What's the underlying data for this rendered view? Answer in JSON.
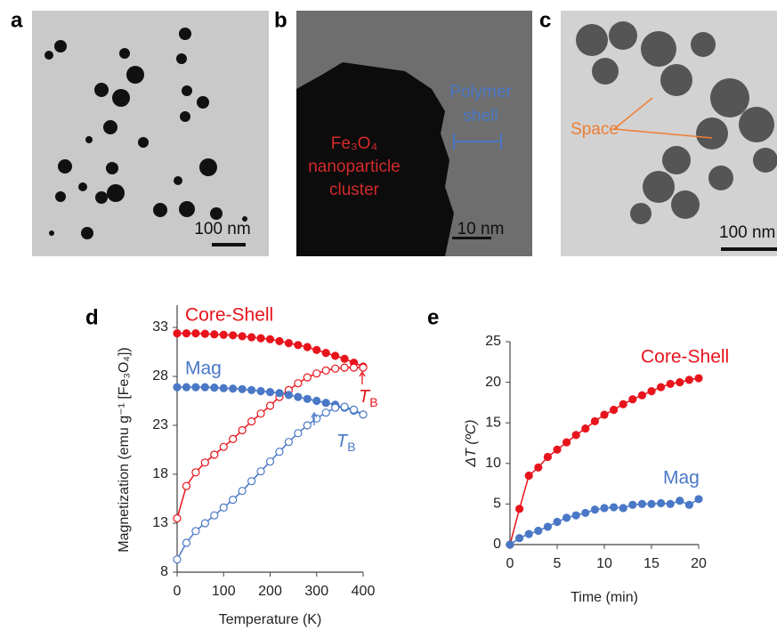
{
  "panels": [
    {
      "letter": "a",
      "scale_bar": "100 nm"
    },
    {
      "letter": "b",
      "scale_bar": "10 nm",
      "core_label": [
        "Fe₃O₄",
        "nanoparticle",
        "cluster"
      ],
      "shell_label": [
        "Polymer",
        "shell"
      ]
    },
    {
      "letter": "c",
      "scale_bar": "100 nm",
      "space_label": "Space"
    }
  ],
  "chart_data": [
    {
      "type": "line",
      "label": "d",
      "x_label": "Temperature (K)",
      "y_label": "Magnetization (emu g⁻¹ [Fe₃O₄])",
      "x": [
        0,
        20,
        40,
        60,
        80,
        100,
        120,
        140,
        160,
        180,
        200,
        220,
        240,
        260,
        280,
        300,
        320,
        340,
        360,
        380,
        400
      ],
      "xlim": [
        0,
        400
      ],
      "xticks": [
        0,
        100,
        200,
        300,
        400
      ],
      "ylim": [
        8,
        33
      ],
      "yticks": [
        8,
        13,
        18,
        23,
        28,
        33
      ],
      "series": [
        {
          "name": "Core-Shell",
          "color": "#e8141c",
          "values": [
            32.4,
            32.4,
            32.4,
            32.35,
            32.3,
            32.25,
            32.2,
            32.1,
            32.0,
            31.9,
            31.8,
            31.6,
            31.4,
            31.2,
            31.0,
            30.7,
            30.4,
            30.1,
            29.8,
            29.4,
            29.0
          ],
          "open_values": [
            13.5,
            16.8,
            18.2,
            19.2,
            20.0,
            20.8,
            21.6,
            22.5,
            23.4,
            24.2,
            25.0,
            25.9,
            26.6,
            27.3,
            27.9,
            28.3,
            28.6,
            28.8,
            28.9,
            28.9,
            28.9
          ]
        },
        {
          "name": "Mag",
          "color": "#4a78c6",
          "values": [
            26.9,
            26.9,
            26.9,
            26.9,
            26.85,
            26.8,
            26.75,
            26.7,
            26.6,
            26.5,
            26.4,
            26.3,
            26.1,
            25.9,
            25.7,
            25.5,
            25.3,
            25.1,
            24.8,
            24.5,
            24.1
          ],
          "open_values": [
            9.3,
            11.0,
            12.2,
            13.0,
            13.8,
            14.6,
            15.4,
            16.3,
            17.3,
            18.3,
            19.3,
            20.3,
            21.3,
            22.2,
            23.0,
            23.7,
            24.3,
            24.8,
            24.9,
            24.6,
            24.1
          ]
        }
      ],
      "annotations": [
        {
          "text": "T",
          "sub": "B"
        },
        {
          "text": "T",
          "sub": "B"
        }
      ]
    },
    {
      "type": "line",
      "label": "e",
      "x_label": "Time (min)",
      "y_label": "ΔT (ºC)",
      "x": [
        0,
        1,
        2,
        3,
        4,
        5,
        6,
        7,
        8,
        9,
        10,
        11,
        12,
        13,
        14,
        15,
        16,
        17,
        18,
        19,
        20
      ],
      "xlim": [
        0,
        20
      ],
      "xticks": [
        0,
        5,
        10,
        15,
        20
      ],
      "ylim": [
        0,
        25
      ],
      "yticks": [
        0,
        5,
        10,
        15,
        20,
        25
      ],
      "series": [
        {
          "name": "Core-Shell",
          "color": "#e8141c",
          "values": [
            0,
            4.4,
            8.5,
            9.5,
            10.8,
            11.7,
            12.6,
            13.5,
            14.3,
            15.2,
            16.0,
            16.6,
            17.3,
            17.9,
            18.4,
            18.9,
            19.4,
            19.8,
            20.0,
            20.3,
            20.5
          ]
        },
        {
          "name": "Mag",
          "color": "#4a78c6",
          "values": [
            0,
            0.8,
            1.3,
            1.7,
            2.2,
            2.8,
            3.3,
            3.6,
            3.9,
            4.3,
            4.5,
            4.6,
            4.5,
            4.9,
            5.0,
            5.0,
            5.1,
            5.0,
            5.4,
            4.9,
            5.6
          ]
        }
      ]
    }
  ]
}
